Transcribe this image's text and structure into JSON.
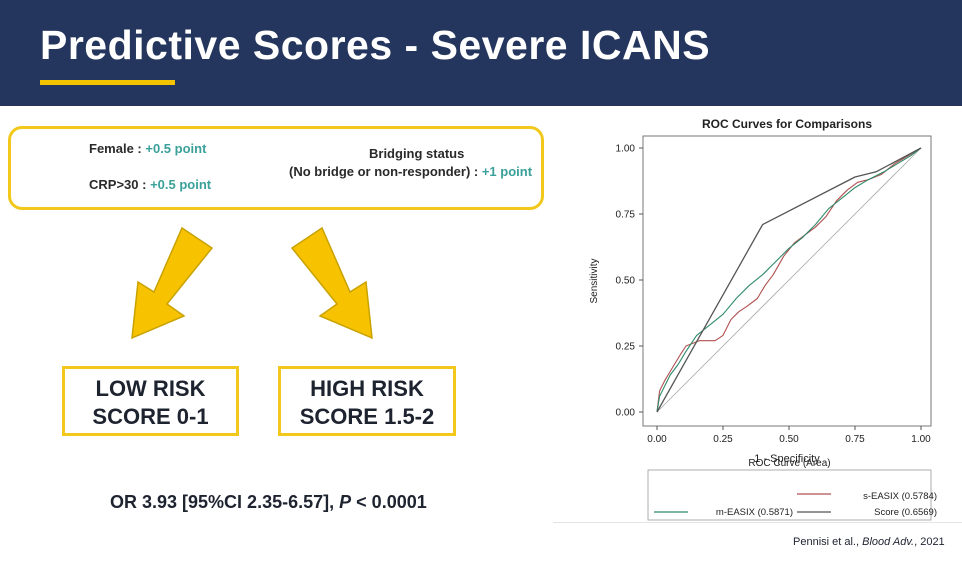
{
  "slide": {
    "title": "Predictive Scores - Severe ICANS",
    "criteria": {
      "female_label": "Female :",
      "female_points": "+0.5 point",
      "crp_label": "CRP>30 :",
      "crp_points": "+0.5 point",
      "bridging_line1": "Bridging status",
      "bridging_line2": "(No bridge or non-responder) :",
      "bridging_points": "+1 point"
    },
    "low_risk": {
      "line1": "LOW RISK",
      "line2": "SCORE 0-1"
    },
    "high_risk": {
      "line1": "HIGH RISK",
      "line2": "SCORE 1.5-2"
    },
    "odds_prefix": "OR 3.93 [95%CI 2.35-6.57],",
    "odds_p": "P",
    "odds_suffix": "< 0.0001",
    "citation_authors": "Pennisi et al.,",
    "citation_journal": "Blood Adv.",
    "citation_year": ", 2021"
  },
  "colors": {
    "header_bg": "#25365e",
    "accent_yellow": "#f2c81a",
    "arrow_fill": "#f7c300",
    "points_teal": "#3aa09a"
  },
  "chart_data": {
    "type": "line",
    "title": "ROC Curves for Comparisons",
    "xlabel": "1 - Specificity",
    "ylabel": "Sensitivity",
    "xlim": [
      0,
      1
    ],
    "ylim": [
      0,
      1
    ],
    "xticks": [
      "0.00",
      "0.25",
      "0.50",
      "0.75",
      "1.00"
    ],
    "yticks": [
      "0.00",
      "0.25",
      "0.50",
      "0.75",
      "1.00"
    ],
    "grid": false,
    "legend_title": "ROC Curve (Area)",
    "legend_position": "bottom",
    "series": [
      {
        "name": "s-EASIX",
        "area": "(0.5784)",
        "color": "#b05050",
        "points": [
          [
            0,
            0
          ],
          [
            0.01,
            0.08
          ],
          [
            0.03,
            0.12
          ],
          [
            0.06,
            0.17
          ],
          [
            0.09,
            0.22
          ],
          [
            0.11,
            0.25
          ],
          [
            0.16,
            0.27
          ],
          [
            0.22,
            0.27
          ],
          [
            0.25,
            0.29
          ],
          [
            0.28,
            0.35
          ],
          [
            0.31,
            0.38
          ],
          [
            0.34,
            0.4
          ],
          [
            0.38,
            0.43
          ],
          [
            0.41,
            0.48
          ],
          [
            0.44,
            0.52
          ],
          [
            0.48,
            0.59
          ],
          [
            0.52,
            0.64
          ],
          [
            0.56,
            0.67
          ],
          [
            0.6,
            0.7
          ],
          [
            0.64,
            0.74
          ],
          [
            0.68,
            0.8
          ],
          [
            0.72,
            0.84
          ],
          [
            0.76,
            0.87
          ],
          [
            0.8,
            0.88
          ],
          [
            0.85,
            0.9
          ],
          [
            0.9,
            0.94
          ],
          [
            0.95,
            0.97
          ],
          [
            1,
            1
          ]
        ]
      },
      {
        "name": "m-EASIX",
        "area": "(0.5871)",
        "color": "#2e8b6a",
        "points": [
          [
            0,
            0
          ],
          [
            0.01,
            0.06
          ],
          [
            0.03,
            0.1
          ],
          [
            0.05,
            0.14
          ],
          [
            0.08,
            0.18
          ],
          [
            0.11,
            0.23
          ],
          [
            0.15,
            0.29
          ],
          [
            0.2,
            0.33
          ],
          [
            0.25,
            0.37
          ],
          [
            0.3,
            0.43
          ],
          [
            0.35,
            0.48
          ],
          [
            0.4,
            0.52
          ],
          [
            0.45,
            0.57
          ],
          [
            0.5,
            0.62
          ],
          [
            0.55,
            0.66
          ],
          [
            0.6,
            0.71
          ],
          [
            0.65,
            0.77
          ],
          [
            0.7,
            0.81
          ],
          [
            0.75,
            0.85
          ],
          [
            0.8,
            0.88
          ],
          [
            0.86,
            0.91
          ],
          [
            0.91,
            0.94
          ],
          [
            0.96,
            0.97
          ],
          [
            1,
            1
          ]
        ]
      },
      {
        "name": "Score",
        "area": "(0.6569)",
        "color": "#555555",
        "points": [
          [
            0,
            0
          ],
          [
            0.4,
            0.71
          ],
          [
            0.75,
            0.89
          ],
          [
            0.83,
            0.91
          ],
          [
            1,
            1
          ]
        ]
      }
    ]
  }
}
